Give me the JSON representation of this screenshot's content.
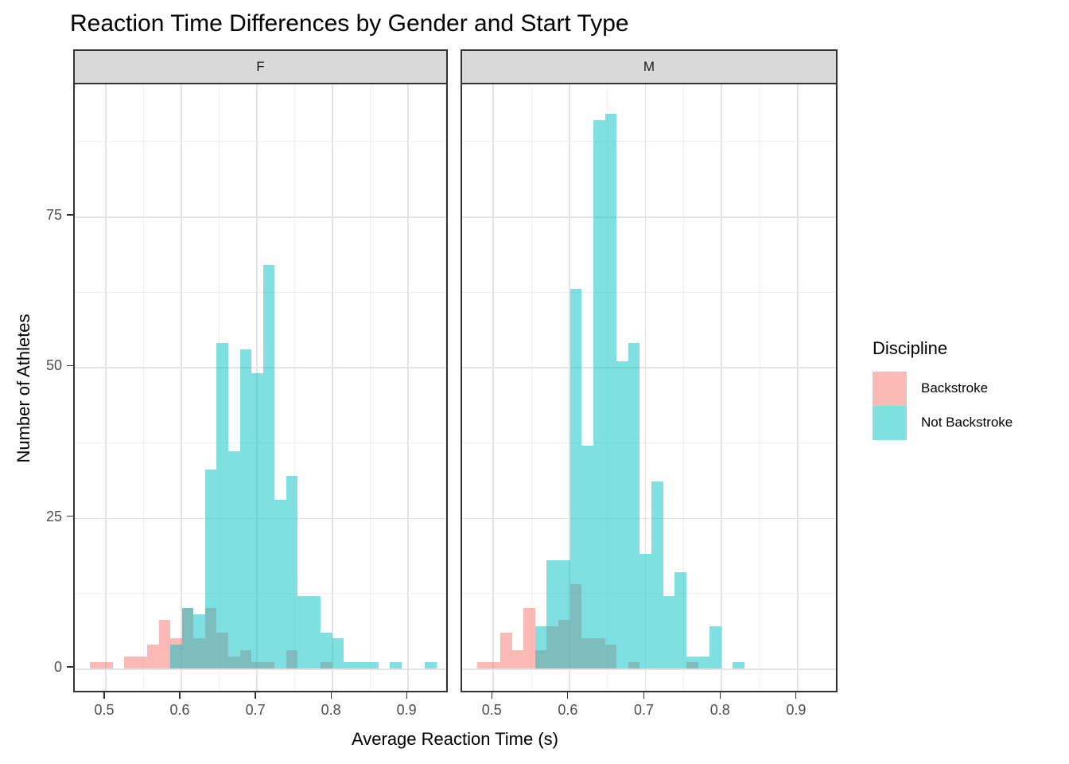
{
  "title": "Reaction Time Differences by Gender and Start Type",
  "x_axis_title": "Average Reaction Time (s)",
  "y_axis_title": "Number of Athletes",
  "axes": {
    "x_tick_labels": [
      "0.5",
      "0.6",
      "0.7",
      "0.8",
      "0.9"
    ],
    "x_tick_values": [
      0.5,
      0.6,
      0.7,
      0.8,
      0.9
    ],
    "x_minor_values": [
      0.55,
      0.65,
      0.75,
      0.85,
      0.95
    ],
    "y_tick_labels": [
      "0",
      "25",
      "50",
      "75"
    ],
    "y_tick_values": [
      0,
      25,
      50,
      75
    ],
    "y_minor_values": [
      12.5,
      37.5,
      62.5,
      87.5
    ]
  },
  "legend": {
    "title": "Discipline",
    "items": [
      {
        "label": "Backstroke",
        "color": "#F8766D",
        "swatch_rgba": "rgba(248,118,109,0.5)"
      },
      {
        "label": "Not Backstroke",
        "color": "#00BFC4",
        "swatch_rgba": "rgba(0,191,196,0.5)"
      }
    ]
  },
  "colors": {
    "backstroke_fill": "rgba(248,118,109,0.5)",
    "not_backstroke_fill": "rgba(0,191,196,0.5)",
    "overlap_seen": "#7EBDBD",
    "strip_fill": "#d9d9d9",
    "panel_border": "#333333",
    "gridline_major": "#e4e4e4",
    "gridline_minor": "#f0f0f0",
    "axis_text": "#4d4d4d"
  },
  "chart_data": {
    "type": "bar",
    "subtype": "overlaid-histogram-faceted",
    "title": "Reaction Time Differences by Gender and Start Type",
    "xlabel": "Average Reaction Time (s)",
    "ylabel": "Number of Athletes",
    "legend_position": "right",
    "grid": true,
    "bin_start": 0.4786,
    "bin_width": 0.015286,
    "n_bins": 30,
    "x_domain": [
      0.459,
      0.9545
    ],
    "y_domain": [
      0,
      97
    ],
    "facets": [
      {
        "label": "F",
        "series": [
          {
            "name": "Backstroke",
            "counts": [
              1,
              1,
              0,
              2,
              2,
              4,
              8,
              5,
              10,
              5,
              10,
              6,
              2,
              3,
              1,
              1,
              0,
              3,
              0,
              0,
              1,
              0,
              0,
              0,
              0,
              0,
              0,
              0,
              0,
              0
            ]
          },
          {
            "name": "Not Backstroke",
            "counts": [
              0,
              0,
              0,
              0,
              0,
              0,
              0,
              4,
              10,
              9,
              33,
              54,
              36,
              53,
              49,
              67,
              28,
              32,
              12,
              12,
              6,
              5,
              1,
              1,
              1,
              0,
              1,
              0,
              0,
              1
            ]
          }
        ]
      },
      {
        "label": "M",
        "series": [
          {
            "name": "Backstroke",
            "counts": [
              1,
              1,
              6,
              3,
              10,
              3,
              7,
              8,
              14,
              5,
              5,
              4,
              0,
              1,
              0,
              0,
              0,
              0,
              1,
              0,
              0,
              0,
              0,
              0,
              0,
              0,
              0,
              0,
              0,
              0
            ]
          },
          {
            "name": "Not Backstroke",
            "counts": [
              0,
              0,
              0,
              0,
              0,
              7,
              18,
              18,
              63,
              37,
              91,
              92,
              51,
              54,
              19,
              31,
              12,
              16,
              2,
              2,
              7,
              0,
              1,
              0,
              0,
              0,
              0,
              0,
              0,
              0
            ]
          }
        ]
      }
    ]
  }
}
